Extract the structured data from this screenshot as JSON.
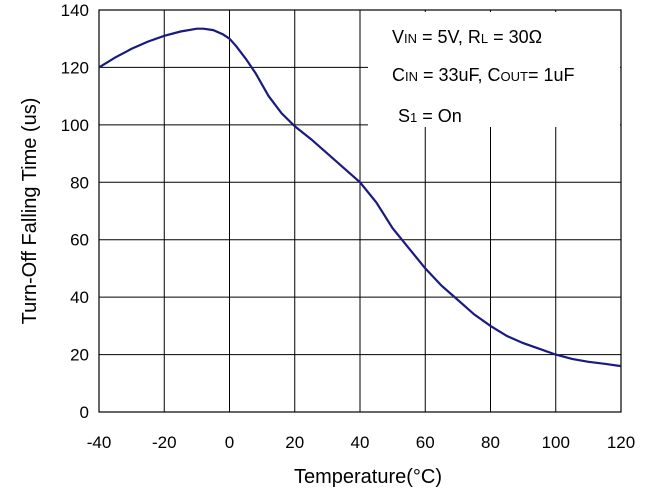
{
  "chart_data": {
    "type": "line",
    "xlabel": "Temperature(°C)",
    "ylabel": "Turn-Off Falling Time (us)",
    "xlim": [
      -40,
      120
    ],
    "ylim": [
      0,
      140
    ],
    "x_ticks": [
      -40,
      -20,
      0,
      20,
      40,
      60,
      80,
      100,
      120
    ],
    "y_ticks": [
      0,
      20,
      40,
      60,
      80,
      100,
      120,
      140
    ],
    "grid": true,
    "line_color": "#1a1a80",
    "series": [
      {
        "x": [
          -40,
          -35,
          -30,
          -25,
          -20,
          -15,
          -10,
          -8,
          -5,
          -2,
          0,
          2,
          5,
          8,
          12,
          16,
          20,
          25,
          30,
          35,
          40,
          45,
          50,
          55,
          60,
          65,
          70,
          75,
          80,
          85,
          90,
          95,
          100,
          105,
          110,
          115,
          120
        ],
        "y": [
          120,
          123.5,
          126.5,
          129,
          131,
          132.5,
          133.5,
          133.5,
          133,
          131.5,
          130,
          127.5,
          123,
          118,
          110,
          104,
          99.5,
          95,
          90,
          85,
          80,
          73,
          64,
          57,
          50,
          44,
          39,
          34,
          30,
          26.5,
          24,
          22,
          20,
          18.5,
          17.5,
          16.8,
          16
        ]
      }
    ],
    "annotations": [
      {
        "line": 1,
        "parts": [
          {
            "t": "V",
            "size": "big"
          },
          {
            "t": "IN",
            "size": "sub"
          },
          {
            "t": " = 5V, R",
            "size": "big"
          },
          {
            "t": "L",
            "size": "sub"
          },
          {
            "t": " = 30Ω",
            "size": "big"
          }
        ]
      },
      {
        "line": 2,
        "parts": [
          {
            "t": "C",
            "size": "big"
          },
          {
            "t": "IN",
            "size": "sub"
          },
          {
            "t": " = 33uF, C",
            "size": "big"
          },
          {
            "t": "OUT",
            "size": "sub"
          },
          {
            "t": "= 1uF",
            "size": "big"
          }
        ]
      },
      {
        "line": 3,
        "parts": [
          {
            "t": "S",
            "size": "big"
          },
          {
            "t": "1",
            "size": "sub"
          },
          {
            "t": " = On",
            "size": "big"
          }
        ]
      }
    ]
  }
}
